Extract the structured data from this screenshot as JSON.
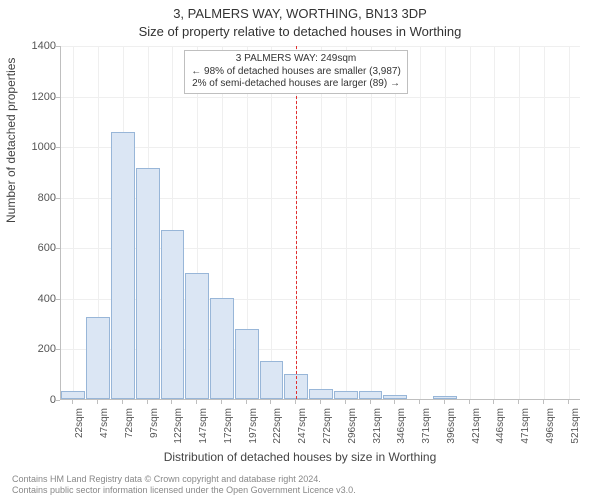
{
  "title_line1": "3, PALMERS WAY, WORTHING, BN13 3DP",
  "title_line2": "Size of property relative to detached houses in Worthing",
  "y_axis_label": "Number of detached properties",
  "x_axis_label": "Distribution of detached houses by size in Worthing",
  "footer_line1": "Contains HM Land Registry data © Crown copyright and database right 2024.",
  "footer_line2": "Contains public sector information licensed under the Open Government Licence v3.0.",
  "annotation": {
    "line1": "3 PALMERS WAY: 249sqm",
    "line2": "← 98% of detached houses are smaller (3,987)",
    "line3": "2% of semi-detached houses are larger (89) →"
  },
  "chart": {
    "type": "histogram",
    "bar_fill": "#dbe6f4",
    "bar_border": "#98b6d8",
    "marker_color": "#e03030",
    "background": "#ffffff",
    "grid_color": "#efefef",
    "axis_color": "#bfbfbf",
    "ymax": 1400,
    "ytick_step": 200,
    "yticks": [
      0,
      200,
      400,
      600,
      800,
      1000,
      1200,
      1400
    ],
    "xticks": [
      "22sqm",
      "47sqm",
      "72sqm",
      "97sqm",
      "122sqm",
      "147sqm",
      "172sqm",
      "197sqm",
      "222sqm",
      "247sqm",
      "272sqm",
      "296sqm",
      "321sqm",
      "346sqm",
      "371sqm",
      "396sqm",
      "421sqm",
      "446sqm",
      "471sqm",
      "496sqm",
      "521sqm"
    ],
    "values": [
      30,
      325,
      1055,
      915,
      670,
      497,
      400,
      277,
      150,
      100,
      40,
      30,
      30,
      15,
      0,
      12,
      0,
      0,
      0,
      0,
      0
    ],
    "marker_bin_index": 9
  }
}
